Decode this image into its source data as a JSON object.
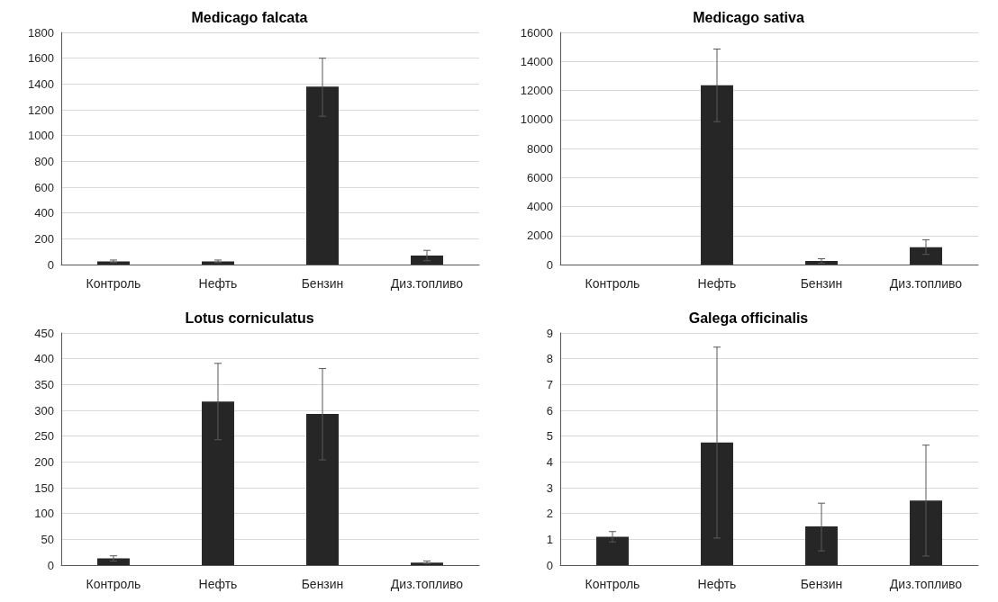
{
  "chart_data": [
    {
      "type": "bar",
      "title": "Medicago falcata",
      "categories": [
        "Контроль",
        "Нефть",
        "Бензин",
        "Диз.топливо"
      ],
      "values": [
        25,
        25,
        1380,
        70
      ],
      "errors": [
        [
          15,
          35
        ],
        [
          15,
          35
        ],
        [
          1150,
          1600
        ],
        [
          30,
          110
        ]
      ],
      "color": "#262626",
      "ylim": [
        0,
        1800
      ],
      "yticks": [
        0,
        200,
        400,
        600,
        800,
        1000,
        1200,
        1400,
        1600,
        1800
      ],
      "grid": "y"
    },
    {
      "type": "bar",
      "title": "Medicago sativa",
      "categories": [
        "Контроль",
        "Нефть",
        "Бензин",
        "Диз.топливо"
      ],
      "values": [
        0,
        12350,
        250,
        1200
      ],
      "errors": [
        null,
        [
          9850,
          14850
        ],
        [
          100,
          400
        ],
        [
          700,
          1700
        ]
      ],
      "color": "#262626",
      "ylim": [
        0,
        16000
      ],
      "yticks": [
        0,
        2000,
        4000,
        6000,
        8000,
        10000,
        12000,
        14000,
        16000
      ],
      "grid": "y"
    },
    {
      "type": "bar",
      "title": "Lotus corniculatus",
      "categories": [
        "Контроль",
        "Нефть",
        "Бензин",
        "Диз.топливо"
      ],
      "values": [
        13,
        317,
        293,
        5
      ],
      "errors": [
        [
          8,
          18
        ],
        [
          243,
          391
        ],
        [
          204,
          381
        ],
        [
          3,
          8
        ]
      ],
      "color": "#262626",
      "ylim": [
        0,
        450
      ],
      "yticks": [
        0,
        50,
        100,
        150,
        200,
        250,
        300,
        350,
        400,
        450
      ],
      "grid": "y"
    },
    {
      "type": "bar",
      "title": "Galega officinalis",
      "categories": [
        "Контроль",
        "Нефть",
        "Бензин",
        "Диз.топливо"
      ],
      "values": [
        1.1,
        4.75,
        1.5,
        2.5
      ],
      "errors": [
        [
          0.9,
          1.3
        ],
        [
          1.05,
          8.45
        ],
        [
          0.55,
          2.4
        ],
        [
          0.35,
          4.65
        ]
      ],
      "color": "#262626",
      "ylim": [
        0,
        9
      ],
      "yticks": [
        0,
        1,
        2,
        3,
        4,
        5,
        6,
        7,
        8,
        9
      ],
      "grid": "y"
    }
  ]
}
